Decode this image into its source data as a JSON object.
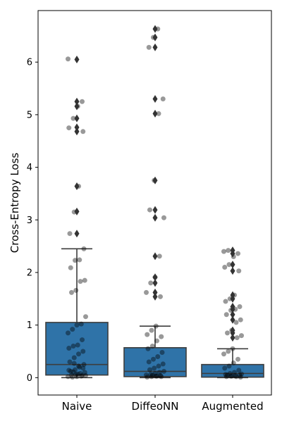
{
  "chart_data": {
    "type": "box",
    "categories": [
      "Naive",
      "DiffeoNN",
      "Augmented"
    ],
    "ylabel": "Cross-Entropy Loss",
    "xlabel": "",
    "ylim": [
      -0.33,
      6.98
    ],
    "yticks": [
      0,
      1,
      2,
      3,
      4,
      5,
      6
    ],
    "ytick_labels": [
      "0",
      "1",
      "2",
      "3",
      "4",
      "5",
      "6"
    ],
    "box_color": "#2f73a8",
    "median_color": "#3d3d3d",
    "point_color": "#000000",
    "point_opacity": 0.4,
    "series": [
      {
        "category": "Naive",
        "q1": 0.05,
        "median": 0.25,
        "q3": 1.05,
        "whisker_low": 0.0,
        "whisker_high": 2.45,
        "outliers": [
          2.74,
          3.16,
          3.64,
          4.68,
          4.76,
          4.93,
          5.16,
          5.25,
          6.05
        ],
        "points": [
          6.06,
          5.25,
          5.16,
          4.93,
          4.75,
          4.68,
          3.64,
          3.15,
          2.74,
          2.45,
          2.24,
          2.23,
          2.09,
          1.85,
          1.83,
          1.66,
          1.62,
          1.16,
          1.02,
          1.0,
          0.92,
          0.85,
          0.72,
          0.62,
          0.6,
          0.56,
          0.5,
          0.45,
          0.38,
          0.3,
          0.25,
          0.2,
          0.15,
          0.12,
          0.1,
          0.08,
          0.06,
          0.05,
          0.04,
          0.03,
          0.02,
          0.01,
          0.02,
          0.04,
          0.07,
          0.11,
          0.14,
          0.18,
          0.22,
          0.27
        ]
      },
      {
        "category": "DiffeoNN",
        "q1": 0.02,
        "median": 0.12,
        "q3": 0.57,
        "whisker_low": 0.0,
        "whisker_high": 0.98,
        "outliers": [
          1.54,
          1.62,
          1.8,
          1.91,
          2.31,
          3.04,
          3.19,
          3.75,
          5.02,
          5.3,
          6.28,
          6.47,
          6.63
        ],
        "points": [
          6.63,
          6.47,
          6.28,
          5.3,
          5.02,
          3.75,
          3.19,
          3.04,
          2.31,
          1.91,
          1.8,
          1.62,
          1.54,
          0.98,
          0.9,
          0.82,
          0.78,
          0.7,
          0.6,
          0.55,
          0.48,
          0.4,
          0.35,
          0.3,
          0.26,
          0.22,
          0.18,
          0.15,
          0.12,
          0.1,
          0.08,
          0.06,
          0.05,
          0.04,
          0.03,
          0.02,
          0.01,
          0.02,
          0.03,
          0.05
        ]
      },
      {
        "category": "Augmented",
        "q1": 0.01,
        "median": 0.08,
        "q3": 0.25,
        "whisker_low": 0.0,
        "whisker_high": 0.55,
        "outliers": [
          0.76,
          0.85,
          0.9,
          1.1,
          1.2,
          1.3,
          1.35,
          1.5,
          1.57,
          2.03,
          2.15,
          2.36,
          2.42
        ],
        "points": [
          2.42,
          2.4,
          2.36,
          2.3,
          2.15,
          2.1,
          2.03,
          1.57,
          1.5,
          1.45,
          1.35,
          1.3,
          1.28,
          1.2,
          1.1,
          1.05,
          0.9,
          0.85,
          0.8,
          0.76,
          0.55,
          0.5,
          0.45,
          0.35,
          0.28,
          0.22,
          0.18,
          0.14,
          0.1,
          0.08,
          0.06,
          0.05,
          0.04,
          0.03,
          0.02,
          0.01,
          0.02,
          0.03,
          0.05,
          0.07
        ]
      }
    ]
  }
}
